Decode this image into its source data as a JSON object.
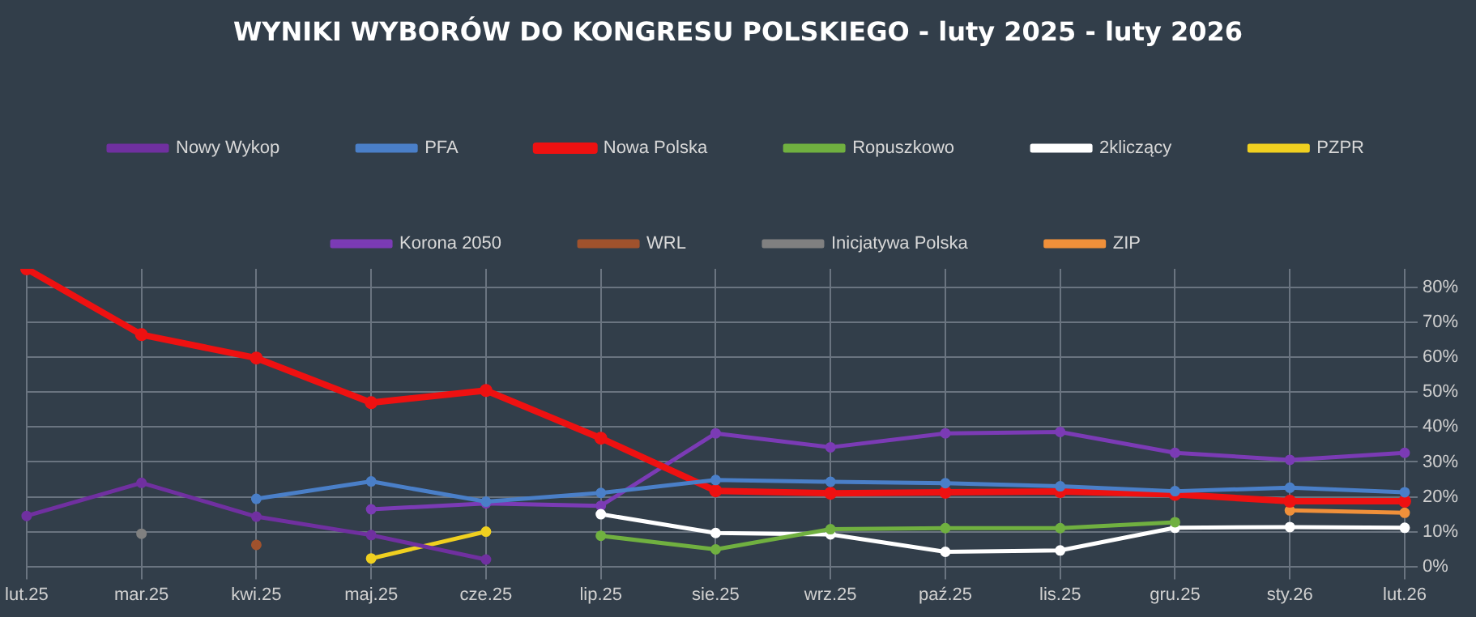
{
  "chart_data": {
    "type": "line",
    "title": "WYNIKI WYBORÓW DO KONGRESU POLSKIEGO - luty 2025 - luty 2026",
    "categories": [
      "lut.25",
      "mar.25",
      "kwi.25",
      "maj.25",
      "cze.25",
      "lip.25",
      "sie.25",
      "wrz.25",
      "paź.25",
      "lis.25",
      "gru.25",
      "sty.26",
      "lut.26"
    ],
    "series": [
      {
        "name": "Nowy Wykop",
        "color": "#7030a0",
        "values": [
          14.5,
          24,
          14.3,
          9,
          2,
          null,
          null,
          null,
          null,
          null,
          null,
          null,
          null
        ]
      },
      {
        "name": "PFA",
        "color": "#4a7fc8",
        "values": [
          null,
          null,
          19.4,
          24.4,
          18.6,
          21.1,
          24.8,
          24.3,
          23.9,
          23,
          21.6,
          22.6,
          21.3
        ]
      },
      {
        "name": "Nowa Polska",
        "color": "#ee1111",
        "values": [
          85.4,
          66.5,
          59.8,
          47,
          50.5,
          36.8,
          21.7,
          21,
          21.3,
          21.5,
          20.7,
          18.7,
          18.7
        ]
      },
      {
        "name": "Ropuszkowo",
        "color": "#70b040",
        "values": [
          null,
          null,
          null,
          null,
          null,
          8.8,
          4.9,
          10.7,
          11,
          11,
          12.7,
          null,
          null
        ]
      },
      {
        "name": "2kliczący",
        "color": "#ffffff",
        "values": [
          null,
          null,
          null,
          null,
          null,
          15,
          9.6,
          9.2,
          4.2,
          4.6,
          11.1,
          11.3,
          11.1
        ]
      },
      {
        "name": "PZPR",
        "color": "#f0d020",
        "values": [
          null,
          null,
          null,
          2.3,
          10,
          null,
          null,
          null,
          null,
          null,
          null,
          null,
          null
        ]
      },
      {
        "name": "Korona 2050",
        "color": "#7b3bb5",
        "values": [
          null,
          null,
          null,
          16.4,
          18.1,
          17.4,
          38.2,
          34.2,
          38.2,
          38.6,
          32.6,
          30.6,
          32.6
        ]
      },
      {
        "name": "WRL",
        "color": "#a0522d",
        "values": [
          null,
          null,
          6.2,
          null,
          null,
          null,
          null,
          null,
          null,
          null,
          null,
          null,
          null
        ]
      },
      {
        "name": "Inicjatywa Polska",
        "color": "#808080",
        "values": [
          null,
          9.4,
          null,
          null,
          null,
          null,
          null,
          null,
          null,
          null,
          null,
          null,
          null
        ]
      },
      {
        "name": "ZIP",
        "color": "#f0903a",
        "values": [
          null,
          null,
          null,
          null,
          null,
          null,
          null,
          null,
          null,
          null,
          null,
          16.1,
          15.4
        ]
      }
    ],
    "ylim": [
      0,
      85.4
    ],
    "yticks": [
      {
        "value": 0,
        "label": "0%"
      },
      {
        "value": 10,
        "label": "10%"
      },
      {
        "value": 20,
        "label": "20%"
      },
      {
        "value": 30,
        "label": "30%"
      },
      {
        "value": 40,
        "label": "40%"
      },
      {
        "value": 50,
        "label": "50%"
      },
      {
        "value": 60,
        "label": "60%"
      },
      {
        "value": 70,
        "label": "70%"
      },
      {
        "value": 80,
        "label": "80%"
      }
    ],
    "grid": true,
    "legend": "top",
    "marker": "circle",
    "line_style": "solid"
  }
}
